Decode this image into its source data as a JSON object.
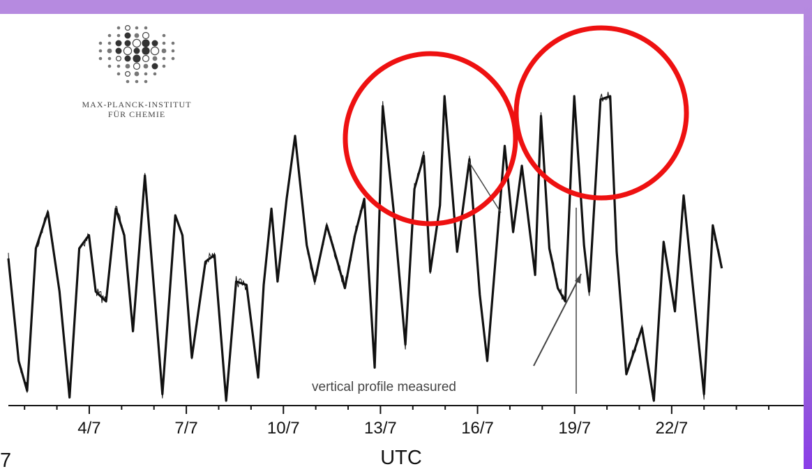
{
  "logo": {
    "line1": "MAX-PLANCK-INSTITUT",
    "line2": "FÜR CHEMIE"
  },
  "annotation": "vertical profile measured",
  "corner_mark": "7",
  "colors": {
    "line": "#111111",
    "highlight": "#ee1111",
    "frame": "#b68ae0"
  },
  "chart_data": {
    "type": "line",
    "title": "",
    "xlabel": "UTC",
    "ylabel": "",
    "x_unit": "day of July",
    "xlim": [
      1.5,
      25.0
    ],
    "ylim": [
      0,
      100
    ],
    "x_ticks": [
      4,
      7,
      10,
      13,
      16,
      19,
      22
    ],
    "x_tick_labels": [
      "4/7",
      "7/7",
      "10/7",
      "13/7",
      "16/7",
      "19/7",
      "22/7"
    ],
    "x_minor_step": 1,
    "grid": false,
    "legend": "none",
    "series": [
      {
        "x": [
          1.5,
          1.82,
          2.08,
          2.35,
          2.72,
          3.08,
          3.39,
          3.69,
          3.99,
          4.2,
          4.52,
          4.82,
          5.08,
          5.35,
          5.72,
          5.99,
          6.26,
          6.66,
          6.88,
          7.17,
          7.59,
          7.87,
          8.23,
          8.54,
          8.86,
          9.22,
          9.39,
          9.63,
          9.82,
          10.1,
          10.36,
          10.72,
          10.97,
          11.34,
          11.61,
          11.9,
          12.21,
          12.5,
          12.82,
          13.07,
          13.4,
          13.77,
          14.05,
          14.34,
          14.54,
          14.84,
          14.98,
          15.37,
          15.75,
          16.07,
          16.3,
          16.6,
          16.84,
          17.1,
          17.37,
          17.78,
          17.96,
          18.22,
          18.48,
          18.71,
          18.99,
          19.29,
          19.45,
          19.8,
          20.1,
          20.3,
          20.6,
          21.08,
          21.45,
          21.75,
          22.1,
          22.37,
          22.64,
          23.0,
          23.27,
          23.55
        ],
        "y": [
          43,
          12,
          3,
          46,
          57,
          33,
          1,
          46,
          50,
          33,
          30,
          58,
          50,
          21,
          68,
          35,
          2,
          56,
          50,
          13,
          42,
          44,
          0,
          36,
          35,
          7,
          35,
          58,
          36,
          61,
          80,
          47,
          36,
          53,
          44,
          34,
          50,
          61,
          10,
          89,
          58,
          17,
          64,
          74,
          39,
          59,
          92,
          45,
          73,
          32,
          12,
          48,
          77,
          51,
          71,
          38,
          86,
          46,
          34,
          30,
          92,
          47,
          33,
          91,
          92,
          45,
          8,
          22,
          0,
          48,
          27,
          62,
          36,
          2,
          53,
          40
        ]
      }
    ]
  }
}
